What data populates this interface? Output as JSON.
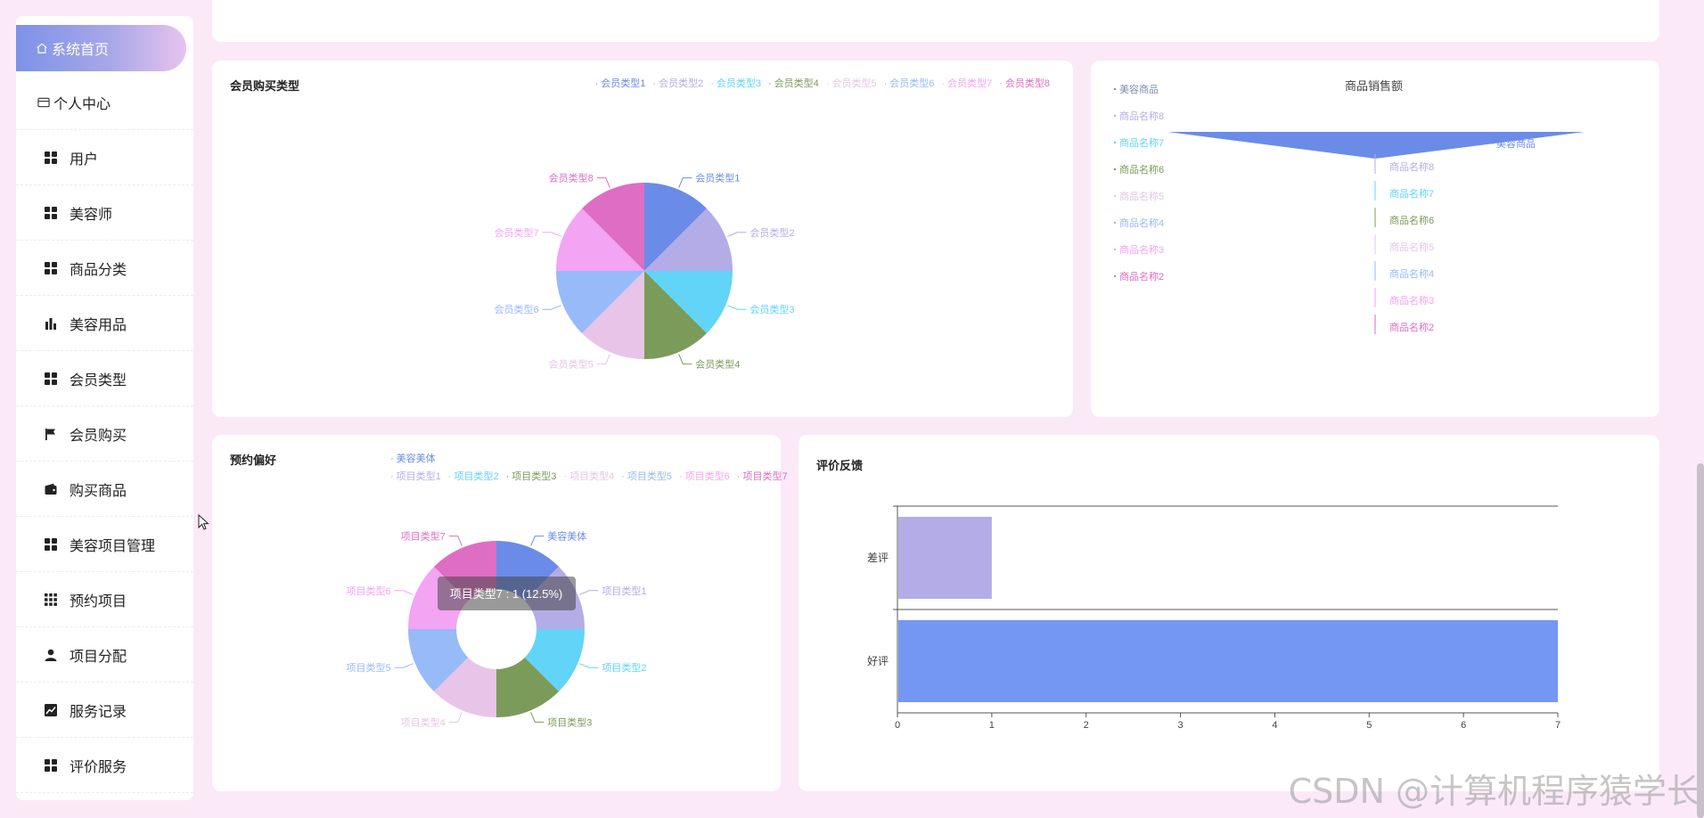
{
  "sidebar": {
    "items": [
      {
        "label": "系统首页",
        "icon": "home-icon"
      },
      {
        "label": "个人中心",
        "icon": "wallet-icon"
      },
      {
        "label": "用户",
        "icon": "grid-icon"
      },
      {
        "label": "美容师",
        "icon": "grid-icon"
      },
      {
        "label": "商品分类",
        "icon": "grid-icon"
      },
      {
        "label": "美容用品",
        "icon": "bar-chart-icon"
      },
      {
        "label": "会员类型",
        "icon": "grid-icon"
      },
      {
        "label": "会员购买",
        "icon": "flag-icon"
      },
      {
        "label": "购买商品",
        "icon": "wallet-icon"
      },
      {
        "label": "美容项目管理",
        "icon": "grid-icon"
      },
      {
        "label": "预约项目",
        "icon": "apps-icon"
      },
      {
        "label": "项目分配",
        "icon": "user-icon"
      },
      {
        "label": "服务记录",
        "icon": "trend-icon"
      },
      {
        "label": "评价服务",
        "icon": "grid-icon"
      }
    ]
  },
  "colors": {
    "accent": "#6c8ce8",
    "home_gradient_end": "#e8c3ef"
  },
  "watermark": "CSDN @计算机程序猿学长",
  "chart_data": [
    {
      "type": "pie",
      "title": "会员购买类型",
      "categories": [
        "会员类型1",
        "会员类型2",
        "会员类型3",
        "会员类型4",
        "会员类型5",
        "会员类型6",
        "会员类型7",
        "会员类型8"
      ],
      "values": [
        1,
        1,
        1,
        1,
        1,
        1,
        1,
        1
      ],
      "colors": [
        "#6b8be8",
        "#b4ace6",
        "#62d4f8",
        "#7b9b5a",
        "#e8c5e8",
        "#97baf8",
        "#f3a4f3",
        "#dd6ec4"
      ],
      "legend": "top-right"
    },
    {
      "type": "funnel",
      "title": "商品销售额",
      "legend_items": [
        "美容商品",
        "商品名称8",
        "商品名称7",
        "商品名称6",
        "商品名称5",
        "商品名称4",
        "商品名称3",
        "商品名称2"
      ],
      "side_labels": [
        "美容商品",
        "商品名称8",
        "商品名称7",
        "商品名称6",
        "商品名称5",
        "商品名称4",
        "商品名称3",
        "商品名称2"
      ],
      "legend": "left"
    },
    {
      "type": "pie",
      "subtype": "donut",
      "title": "预约偏好",
      "categories": [
        "美容美体",
        "项目类型1",
        "项目类型2",
        "项目类型3",
        "项目类型4",
        "项目类型5",
        "项目类型6",
        "项目类型7"
      ],
      "values": [
        1,
        1,
        1,
        1,
        1,
        1,
        1,
        1
      ],
      "colors": [
        "#6b8be8",
        "#b4ace6",
        "#62d4f8",
        "#7b9b5a",
        "#e8c5e8",
        "#97baf8",
        "#f3a4f3",
        "#dd6ec4"
      ],
      "tooltip": "项目类型7 : 1 (12.5%)",
      "legend": "top"
    },
    {
      "type": "bar",
      "orientation": "horizontal",
      "title": "评价反馈",
      "categories": [
        "差评",
        "好评"
      ],
      "values": [
        1,
        7
      ],
      "colors": [
        "#b4ace6",
        "#7397f2"
      ],
      "xlim": [
        0,
        7
      ],
      "xticks": [
        "0",
        "1",
        "2",
        "3",
        "4",
        "5",
        "6",
        "7"
      ]
    }
  ]
}
